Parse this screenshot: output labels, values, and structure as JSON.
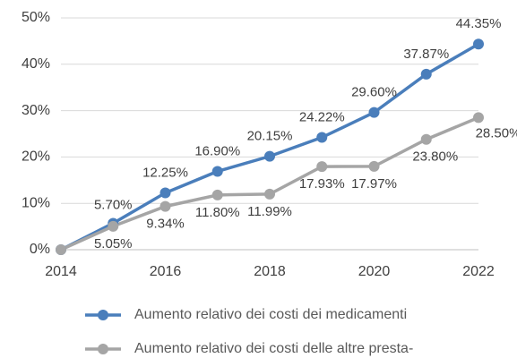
{
  "chart_data": {
    "type": "line",
    "x": [
      2014,
      2015,
      2016,
      2017,
      2018,
      2019,
      2020,
      2021,
      2022
    ],
    "series": [
      {
        "name": "Aumento relativo dei costi dei medicamenti",
        "color": "#4a7ebb",
        "values": [
          0,
          5.7,
          12.25,
          16.9,
          20.15,
          24.22,
          29.6,
          37.87,
          44.35
        ],
        "value_labels": [
          null,
          "5.70%",
          "12.25%",
          "16.90%",
          "20.15%",
          "24.22%",
          "29.60%",
          "37.87%",
          "44.35%"
        ]
      },
      {
        "name": "Aumento relativo dei costi delle altre presta-",
        "color": "#a5a5a5",
        "values": [
          0,
          5.05,
          9.34,
          11.8,
          11.99,
          17.93,
          17.97,
          23.8,
          28.5
        ],
        "value_labels": [
          null,
          "5.05%",
          "9.34%",
          "11.80%",
          "11.99%",
          "17.93%",
          "17.97%",
          "23.80%",
          "28.50%"
        ]
      }
    ],
    "xlim": [
      2014,
      2022
    ],
    "xticks": [
      2014,
      2016,
      2018,
      2020,
      2022
    ],
    "ylim": [
      0,
      50
    ],
    "yticks": [
      {
        "value": 0,
        "label": "0%"
      },
      {
        "value": 10,
        "label": "10%"
      },
      {
        "value": 20,
        "label": "20%"
      },
      {
        "value": 30,
        "label": "30%"
      },
      {
        "value": 40,
        "label": "40%"
      },
      {
        "value": 50,
        "label": "50%"
      }
    ],
    "grid": true
  }
}
